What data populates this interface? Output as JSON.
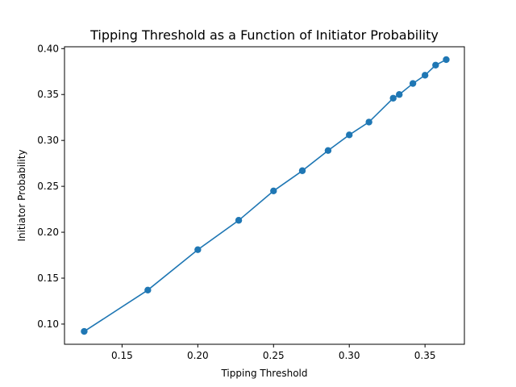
{
  "chart_data": {
    "type": "line",
    "title": "Tipping Threshold as a Function of Initiator Probability",
    "xlabel": "Tipping Threshold",
    "ylabel": "Initiator Probability",
    "xlim": [
      0.112,
      0.376
    ],
    "ylim": [
      0.078,
      0.402
    ],
    "xticks": [
      0.15,
      0.2,
      0.25,
      0.3,
      0.35
    ],
    "xtick_labels": [
      "0.15",
      "0.20",
      "0.25",
      "0.30",
      "0.35"
    ],
    "yticks": [
      0.1,
      0.15,
      0.2,
      0.25,
      0.3,
      0.35,
      0.4
    ],
    "ytick_labels": [
      "0.10",
      "0.15",
      "0.20",
      "0.25",
      "0.30",
      "0.35",
      "0.40"
    ],
    "grid": false,
    "markers": true,
    "color": "#1f77b4",
    "series": [
      {
        "x": [
          0.125,
          0.167,
          0.2,
          0.227,
          0.25,
          0.269,
          0.286,
          0.3,
          0.313,
          0.329,
          0.333,
          0.342,
          0.35,
          0.357,
          0.364
        ],
        "y": [
          0.092,
          0.137,
          0.181,
          0.213,
          0.245,
          0.267,
          0.289,
          0.306,
          0.32,
          0.346,
          0.35,
          0.362,
          0.371,
          0.382,
          0.388
        ]
      }
    ]
  }
}
